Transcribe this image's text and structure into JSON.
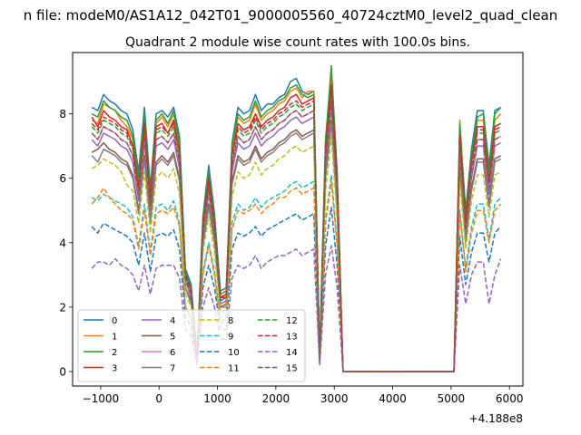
{
  "figure": {
    "suptitle": "n file: modeM0/AS1A12_042T01_9000005560_40724cztM0_level2_quad_clean",
    "offset_label": "+4.188e8"
  },
  "chart_data": {
    "type": "line",
    "title": "Quadrant 2 module wise count rates with 100.0s bins.",
    "xlabel": "",
    "ylabel": "",
    "x_offset": 418800000,
    "xlim": [
      -1480,
      6230
    ],
    "ylim": [
      -0.45,
      9.9
    ],
    "x_ticks": [
      -1000,
      0,
      1000,
      2000,
      3000,
      4000,
      5000,
      6000
    ],
    "x_tick_labels": [
      "−1000",
      "0",
      "1000",
      "2000",
      "3000",
      "4000",
      "5000",
      "6000"
    ],
    "y_ticks": [
      0,
      2,
      4,
      6,
      8
    ],
    "y_tick_labels": [
      "0",
      "2",
      "4",
      "6",
      "8"
    ],
    "grid": false,
    "legend_position": "lower-left",
    "legend_columns": 4,
    "x": [
      -1150,
      -1050,
      -950,
      -850,
      -750,
      -650,
      -550,
      -450,
      -350,
      -250,
      -150,
      -50,
      50,
      150,
      250,
      350,
      450,
      550,
      650,
      750,
      850,
      950,
      1050,
      1150,
      1250,
      1350,
      1450,
      1550,
      1650,
      1750,
      1850,
      1950,
      2050,
      2150,
      2250,
      2350,
      2450,
      2550,
      2650,
      2750,
      2850,
      2950,
      3050,
      3150,
      3250,
      4850,
      4950,
      5050,
      5150,
      5250,
      5350,
      5450,
      5550,
      5650,
      5750,
      5850
    ],
    "series": [
      {
        "name": "0",
        "color": "#1f77b4",
        "dash": "solid",
        "values": [
          8.2,
          8.1,
          8.6,
          8.4,
          8.3,
          8.1,
          8.0,
          7.5,
          6.2,
          8.2,
          5.7,
          8.0,
          8.1,
          7.9,
          8.2,
          7.3,
          3.2,
          2.7,
          0.5,
          4.8,
          6.4,
          4.9,
          2.5,
          2.6,
          7.1,
          8.2,
          8.0,
          8.1,
          8.6,
          8.1,
          8.3,
          8.3,
          8.5,
          8.6,
          9.0,
          9.1,
          8.7,
          8.6,
          8.7,
          0.5,
          7.2,
          9.4,
          6.2,
          0.0,
          0.0,
          0.0,
          0.0,
          0.0,
          7.6,
          5.0,
          6.9,
          8.1,
          8.1,
          6.4,
          8.1,
          8.2
        ]
      },
      {
        "name": "1",
        "color": "#ff7f0e",
        "dash": "solid",
        "values": [
          7.8,
          7.7,
          8.3,
          8.2,
          8.1,
          7.8,
          7.6,
          7.2,
          5.8,
          7.9,
          5.4,
          7.7,
          7.9,
          7.6,
          8.0,
          7.0,
          3.0,
          2.5,
          0.4,
          4.6,
          6.1,
          4.7,
          2.3,
          2.4,
          6.8,
          7.9,
          7.7,
          7.8,
          8.3,
          7.8,
          8.0,
          8.1,
          8.3,
          8.4,
          8.7,
          8.8,
          8.5,
          8.7,
          8.7,
          0.4,
          7.0,
          9.1,
          6.0,
          0.0,
          0.0,
          0.0,
          0.0,
          0.0,
          7.8,
          4.8,
          6.6,
          7.8,
          7.8,
          6.1,
          7.8,
          8.0
        ]
      },
      {
        "name": "2",
        "color": "#2ca02c",
        "dash": "solid",
        "values": [
          8.0,
          7.9,
          8.4,
          8.2,
          8.1,
          7.9,
          7.8,
          7.3,
          6.0,
          8.0,
          5.5,
          7.8,
          8.0,
          7.7,
          8.1,
          7.1,
          3.1,
          2.6,
          0.4,
          4.7,
          6.2,
          4.8,
          2.4,
          2.5,
          7.0,
          8.0,
          7.8,
          7.9,
          8.4,
          7.9,
          8.1,
          8.2,
          8.4,
          8.5,
          8.8,
          8.9,
          8.6,
          8.5,
          8.6,
          0.4,
          7.1,
          9.5,
          6.1,
          0.0,
          0.0,
          0.0,
          0.0,
          0.0,
          7.7,
          4.9,
          6.7,
          7.9,
          8.0,
          6.2,
          8.0,
          8.2
        ]
      },
      {
        "name": "3",
        "color": "#d62728",
        "dash": "solid",
        "values": [
          7.9,
          7.6,
          8.1,
          7.9,
          7.8,
          7.6,
          7.5,
          7.0,
          5.7,
          7.7,
          5.3,
          7.6,
          7.7,
          7.4,
          7.8,
          6.8,
          2.9,
          2.4,
          0.4,
          4.5,
          6.0,
          4.6,
          2.3,
          2.4,
          6.7,
          7.7,
          7.5,
          7.6,
          8.0,
          7.6,
          7.8,
          7.9,
          8.1,
          8.2,
          8.5,
          8.6,
          8.3,
          8.4,
          8.5,
          0.4,
          6.9,
          8.9,
          5.9,
          0.0,
          0.0,
          0.0,
          0.0,
          0.0,
          7.3,
          4.7,
          6.5,
          7.6,
          7.6,
          5.9,
          7.6,
          7.7
        ]
      },
      {
        "name": "4",
        "color": "#9467bd",
        "dash": "solid",
        "values": [
          7.2,
          7.0,
          7.4,
          7.3,
          7.2,
          7.0,
          6.9,
          6.5,
          5.3,
          7.1,
          5.0,
          7.0,
          7.1,
          6.9,
          7.2,
          6.3,
          2.8,
          2.3,
          0.4,
          4.2,
          5.5,
          4.3,
          2.1,
          2.2,
          6.2,
          7.1,
          6.9,
          7.0,
          7.4,
          7.0,
          7.2,
          7.3,
          7.5,
          7.6,
          7.8,
          7.9,
          7.7,
          7.8,
          7.9,
          0.4,
          6.4,
          8.2,
          5.4,
          0.0,
          0.0,
          0.0,
          0.0,
          0.0,
          6.8,
          4.3,
          6.0,
          7.0,
          7.0,
          5.5,
          7.0,
          7.1
        ]
      },
      {
        "name": "5",
        "color": "#8c564b",
        "dash": "solid",
        "values": [
          6.8,
          6.9,
          7.1,
          6.9,
          6.8,
          6.6,
          6.5,
          6.1,
          5.0,
          6.7,
          4.7,
          6.5,
          6.7,
          6.5,
          6.8,
          6.0,
          2.6,
          2.2,
          0.3,
          4.0,
          5.2,
          4.1,
          2.0,
          2.1,
          5.9,
          6.7,
          6.5,
          6.6,
          7.0,
          6.6,
          6.8,
          6.9,
          7.1,
          7.2,
          7.4,
          7.5,
          7.3,
          7.4,
          7.5,
          0.4,
          6.1,
          7.8,
          5.1,
          0.0,
          0.0,
          0.0,
          0.0,
          0.0,
          6.4,
          4.1,
          5.7,
          6.6,
          6.6,
          5.2,
          6.6,
          6.7
        ]
      },
      {
        "name": "6",
        "color": "#e377c2",
        "dash": "solid",
        "values": [
          7.4,
          7.2,
          7.6,
          7.5,
          7.4,
          7.2,
          7.1,
          6.7,
          5.5,
          7.3,
          5.1,
          7.2,
          7.3,
          7.1,
          7.4,
          6.5,
          2.9,
          2.4,
          0.4,
          4.3,
          5.7,
          4.4,
          2.2,
          2.3,
          6.4,
          7.3,
          7.1,
          7.2,
          7.6,
          7.2,
          7.4,
          7.5,
          7.7,
          7.8,
          8.0,
          8.1,
          7.9,
          8.0,
          8.1,
          0.4,
          6.6,
          8.4,
          5.6,
          0.0,
          0.0,
          0.0,
          0.0,
          0.0,
          7.0,
          4.4,
          6.2,
          7.2,
          7.2,
          5.7,
          7.2,
          7.3
        ]
      },
      {
        "name": "7",
        "color": "#7f7f7f",
        "dash": "solid",
        "values": [
          6.7,
          6.5,
          6.9,
          6.8,
          6.7,
          6.5,
          6.4,
          6.0,
          4.9,
          6.6,
          4.6,
          6.4,
          6.6,
          6.4,
          6.7,
          5.9,
          2.6,
          2.1,
          0.3,
          3.9,
          5.1,
          4.0,
          2.0,
          2.0,
          5.8,
          6.6,
          6.4,
          6.5,
          6.9,
          6.5,
          6.7,
          6.8,
          7.0,
          7.1,
          7.3,
          7.4,
          7.2,
          7.3,
          7.4,
          0.3,
          6.0,
          7.7,
          5.0,
          0.0,
          0.0,
          0.0,
          0.0,
          0.0,
          6.3,
          4.0,
          5.6,
          6.5,
          6.5,
          5.1,
          6.5,
          6.6
        ]
      },
      {
        "name": "8",
        "color": "#bcbd22",
        "dash": "dashed",
        "values": [
          6.3,
          6.4,
          6.6,
          6.5,
          6.4,
          6.2,
          5.8,
          5.6,
          4.6,
          6.2,
          4.3,
          6.0,
          6.2,
          6.0,
          6.3,
          5.5,
          2.4,
          2.0,
          0.3,
          3.7,
          4.8,
          3.7,
          1.8,
          1.9,
          5.4,
          6.2,
          6.0,
          6.1,
          6.5,
          6.1,
          6.3,
          6.4,
          6.6,
          6.7,
          6.9,
          7.0,
          6.8,
          6.9,
          7.0,
          0.3,
          5.6,
          7.3,
          4.7,
          0.0,
          0.0,
          0.0,
          0.0,
          0.0,
          5.9,
          3.8,
          5.3,
          6.1,
          6.1,
          4.8,
          6.1,
          6.2
        ]
      },
      {
        "name": "9",
        "color": "#17becf",
        "dash": "dashed",
        "values": [
          5.4,
          5.3,
          5.5,
          5.4,
          5.3,
          5.2,
          5.1,
          4.8,
          3.9,
          5.2,
          3.7,
          5.1,
          5.2,
          5.0,
          5.3,
          4.6,
          2.0,
          1.7,
          0.3,
          3.1,
          4.0,
          3.1,
          1.6,
          1.6,
          4.6,
          5.2,
          5.0,
          5.1,
          5.4,
          5.1,
          5.3,
          5.4,
          5.5,
          5.6,
          5.8,
          5.9,
          5.7,
          5.8,
          5.9,
          0.3,
          4.7,
          6.1,
          4.0,
          0.0,
          0.0,
          0.0,
          0.0,
          0.0,
          5.0,
          3.2,
          4.5,
          5.2,
          5.2,
          4.1,
          5.2,
          5.4
        ]
      },
      {
        "name": "10",
        "color": "#1f77b4",
        "dash": "dashed",
        "values": [
          4.5,
          4.3,
          4.6,
          4.5,
          4.4,
          4.3,
          4.2,
          4.0,
          3.3,
          4.3,
          3.1,
          4.2,
          4.3,
          4.2,
          4.4,
          3.8,
          1.7,
          1.4,
          0.2,
          2.6,
          3.3,
          2.6,
          1.3,
          1.3,
          3.8,
          4.3,
          4.2,
          4.3,
          4.5,
          4.2,
          4.4,
          4.5,
          4.6,
          4.7,
          4.8,
          4.9,
          4.7,
          4.8,
          4.9,
          0.2,
          3.9,
          5.1,
          3.3,
          0.0,
          0.0,
          0.0,
          0.0,
          0.0,
          4.2,
          2.7,
          3.7,
          4.3,
          4.3,
          3.4,
          4.3,
          4.5
        ]
      },
      {
        "name": "11",
        "color": "#ff7f0e",
        "dash": "dashed",
        "values": [
          5.2,
          5.4,
          5.7,
          5.4,
          5.2,
          5.0,
          4.9,
          4.7,
          3.8,
          5.0,
          3.6,
          4.9,
          5.0,
          4.9,
          5.1,
          4.5,
          2.0,
          1.6,
          0.3,
          3.0,
          3.9,
          3.0,
          1.5,
          1.6,
          4.4,
          5.0,
          4.9,
          5.0,
          5.2,
          4.9,
          5.1,
          5.2,
          5.4,
          5.4,
          5.6,
          5.7,
          5.5,
          5.6,
          5.7,
          0.3,
          4.6,
          5.9,
          3.9,
          0.0,
          0.0,
          0.0,
          0.0,
          0.0,
          4.9,
          3.1,
          4.3,
          5.0,
          5.0,
          4.0,
          5.0,
          5.2
        ]
      },
      {
        "name": "12",
        "color": "#2ca02c",
        "dash": "dashed",
        "values": [
          7.6,
          7.4,
          7.8,
          7.7,
          7.6,
          7.4,
          7.3,
          6.9,
          5.6,
          7.5,
          5.2,
          7.4,
          7.5,
          7.3,
          7.6,
          6.7,
          3.0,
          2.5,
          0.4,
          4.4,
          5.8,
          4.5,
          2.2,
          2.3,
          6.6,
          7.5,
          7.3,
          7.4,
          7.8,
          7.4,
          7.6,
          7.7,
          7.9,
          8.0,
          8.2,
          8.3,
          8.1,
          8.2,
          8.3,
          0.4,
          6.7,
          8.6,
          5.7,
          0.0,
          0.0,
          0.0,
          0.0,
          0.0,
          7.2,
          4.6,
          6.4,
          7.4,
          7.4,
          5.8,
          7.4,
          7.5
        ]
      },
      {
        "name": "13",
        "color": "#d62728",
        "dash": "dashed",
        "values": [
          7.7,
          7.5,
          7.9,
          7.8,
          7.7,
          7.5,
          7.4,
          7.0,
          5.7,
          7.6,
          5.3,
          7.5,
          7.6,
          7.4,
          7.7,
          6.8,
          3.0,
          2.5,
          0.4,
          4.5,
          5.9,
          4.6,
          2.3,
          2.3,
          6.7,
          7.6,
          7.4,
          7.5,
          7.9,
          7.5,
          7.7,
          7.8,
          8.0,
          8.1,
          8.3,
          8.4,
          8.2,
          8.3,
          8.4,
          0.4,
          6.8,
          8.7,
          5.8,
          0.0,
          0.0,
          0.0,
          0.0,
          0.0,
          7.3,
          4.6,
          6.5,
          7.5,
          7.5,
          5.9,
          7.5,
          7.6
        ]
      },
      {
        "name": "14",
        "color": "#9467bd",
        "dash": "dashed",
        "values": [
          3.2,
          3.4,
          3.4,
          3.3,
          3.5,
          3.3,
          3.2,
          3.0,
          2.5,
          3.3,
          2.4,
          3.2,
          3.3,
          3.3,
          3.3,
          2.9,
          1.3,
          1.1,
          0.2,
          2.0,
          2.6,
          2.0,
          1.0,
          1.0,
          2.9,
          3.3,
          3.2,
          3.3,
          3.6,
          3.2,
          3.4,
          3.5,
          3.6,
          3.6,
          3.7,
          3.8,
          3.6,
          3.7,
          3.8,
          0.2,
          3.0,
          3.9,
          2.6,
          0.0,
          0.0,
          0.0,
          0.0,
          0.0,
          3.3,
          2.1,
          3.0,
          3.4,
          3.4,
          2.1,
          3.0,
          3.5
        ]
      },
      {
        "name": "15",
        "color": "#8c564b",
        "dash": "dashed",
        "values": [
          7.4,
          7.2,
          7.6,
          7.5,
          7.4,
          7.2,
          7.1,
          6.7,
          5.5,
          7.3,
          5.1,
          7.2,
          7.3,
          7.1,
          7.4,
          6.5,
          2.9,
          2.4,
          0.4,
          4.3,
          5.7,
          4.4,
          2.2,
          2.3,
          6.4,
          7.3,
          7.1,
          7.2,
          7.6,
          7.2,
          7.4,
          7.5,
          7.7,
          7.8,
          8.0,
          8.1,
          7.9,
          8.0,
          8.1,
          0.4,
          6.6,
          8.4,
          5.6,
          0.0,
          0.0,
          0.0,
          0.0,
          0.0,
          7.0,
          4.4,
          6.2,
          7.2,
          7.2,
          5.7,
          7.2,
          7.3
        ]
      }
    ]
  }
}
